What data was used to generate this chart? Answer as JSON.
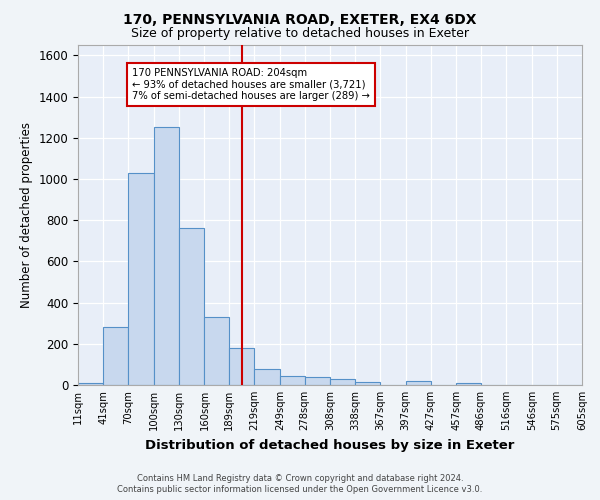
{
  "title_line1": "170, PENNSYLVANIA ROAD, EXETER, EX4 6DX",
  "title_line2": "Size of property relative to detached houses in Exeter",
  "xlabel": "Distribution of detached houses by size in Exeter",
  "ylabel": "Number of detached properties",
  "bar_color": "#c8d8ee",
  "bar_edge_color": "#5590c8",
  "background_color": "#e8eef8",
  "grid_color": "#ffffff",
  "fig_bg_color": "#f0f4f8",
  "vline_color": "#cc0000",
  "vline_x": 204,
  "annotation_text": "170 PENNSYLVANIA ROAD: 204sqm\n← 93% of detached houses are smaller (3,721)\n7% of semi-detached houses are larger (289) →",
  "bin_edges": [
    11,
    41,
    70,
    100,
    130,
    160,
    189,
    219,
    249,
    278,
    308,
    338,
    367,
    397,
    427,
    457,
    486,
    516,
    546,
    575,
    605
  ],
  "bar_heights": [
    10,
    280,
    1030,
    1250,
    760,
    330,
    180,
    80,
    45,
    38,
    28,
    15,
    0,
    18,
    0,
    12,
    0,
    0,
    0,
    0
  ],
  "ylim": [
    0,
    1650
  ],
  "yticks": [
    0,
    200,
    400,
    600,
    800,
    1000,
    1200,
    1400,
    1600
  ],
  "footer_text": "Contains HM Land Registry data © Crown copyright and database right 2024.\nContains public sector information licensed under the Open Government Licence v3.0.",
  "tick_labels": [
    "11sqm",
    "41sqm",
    "70sqm",
    "100sqm",
    "130sqm",
    "160sqm",
    "189sqm",
    "219sqm",
    "249sqm",
    "278sqm",
    "308sqm",
    "338sqm",
    "367sqm",
    "397sqm",
    "427sqm",
    "457sqm",
    "486sqm",
    "516sqm",
    "546sqm",
    "575sqm",
    "605sqm"
  ]
}
